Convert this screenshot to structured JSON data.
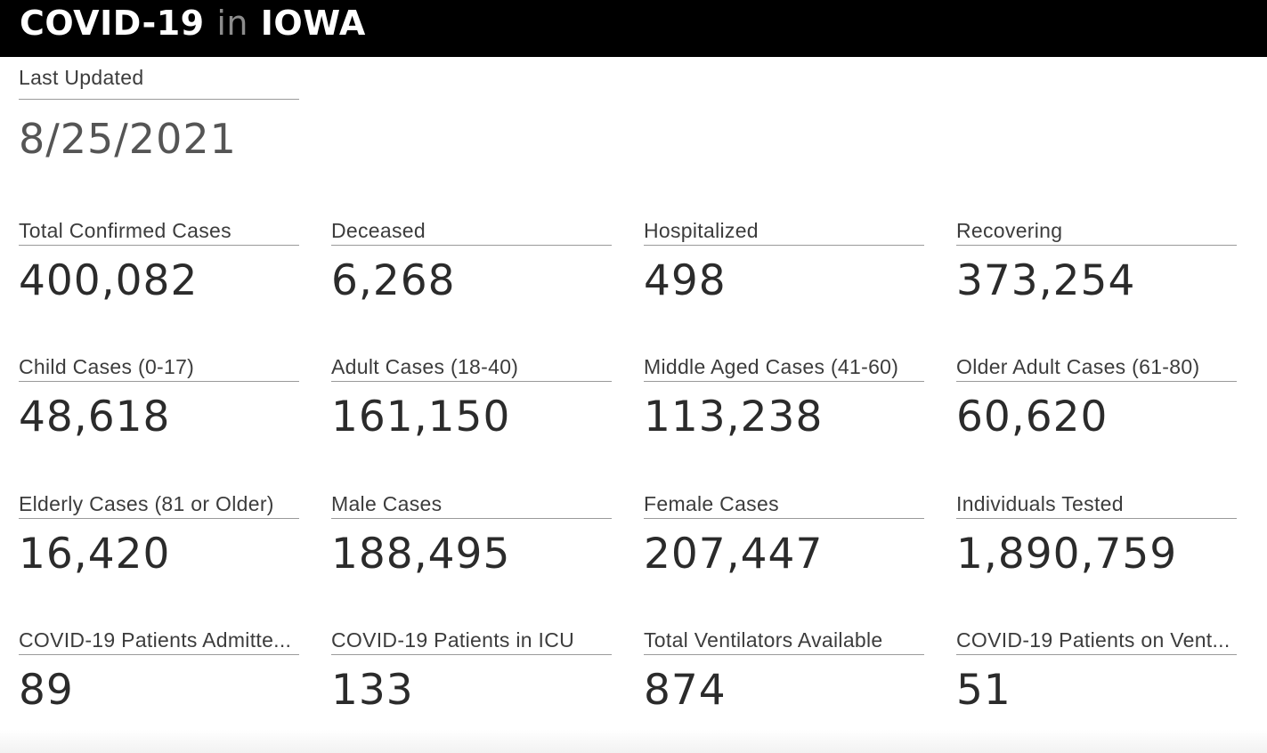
{
  "header": {
    "title_part1": "COVID-19",
    "title_part2": "in",
    "title_part3": "IOWA"
  },
  "last_updated": {
    "label": "Last Updated",
    "value": "8/25/2021"
  },
  "rows": [
    [
      {
        "label": "Total Confirmed Cases",
        "value": "400,082"
      },
      {
        "label": "Deceased",
        "value": "6,268"
      },
      {
        "label": "Hospitalized",
        "value": "498"
      },
      {
        "label": "Recovering",
        "value": "373,254"
      }
    ],
    [
      {
        "label": "Child Cases (0-17)",
        "value": "48,618"
      },
      {
        "label": "Adult Cases (18-40)",
        "value": "161,150"
      },
      {
        "label": "Middle Aged Cases (41-60)",
        "value": "113,238"
      },
      {
        "label": "Older Adult Cases (61-80)",
        "value": "60,620"
      }
    ],
    [
      {
        "label": "Elderly Cases (81 or Older)",
        "value": "16,420"
      },
      {
        "label": "Male Cases",
        "value": "188,495"
      },
      {
        "label": "Female Cases",
        "value": "207,447"
      },
      {
        "label": "Individuals Tested",
        "value": "1,890,759"
      }
    ],
    [
      {
        "label": "COVID-19 Patients Admitte...",
        "value": "89"
      },
      {
        "label": "COVID-19 Patients in ICU",
        "value": "133"
      },
      {
        "label": "Total Ventilators Available",
        "value": "874"
      },
      {
        "label": "COVID-19 Patients on Vent...",
        "value": "51"
      }
    ]
  ],
  "colors": {
    "header_bg": "#000000",
    "brand_text": "#ffffff",
    "brand_in": "#8c8c8c",
    "label_text": "#3c3c3c",
    "value_text": "#2b2b2b"
  }
}
